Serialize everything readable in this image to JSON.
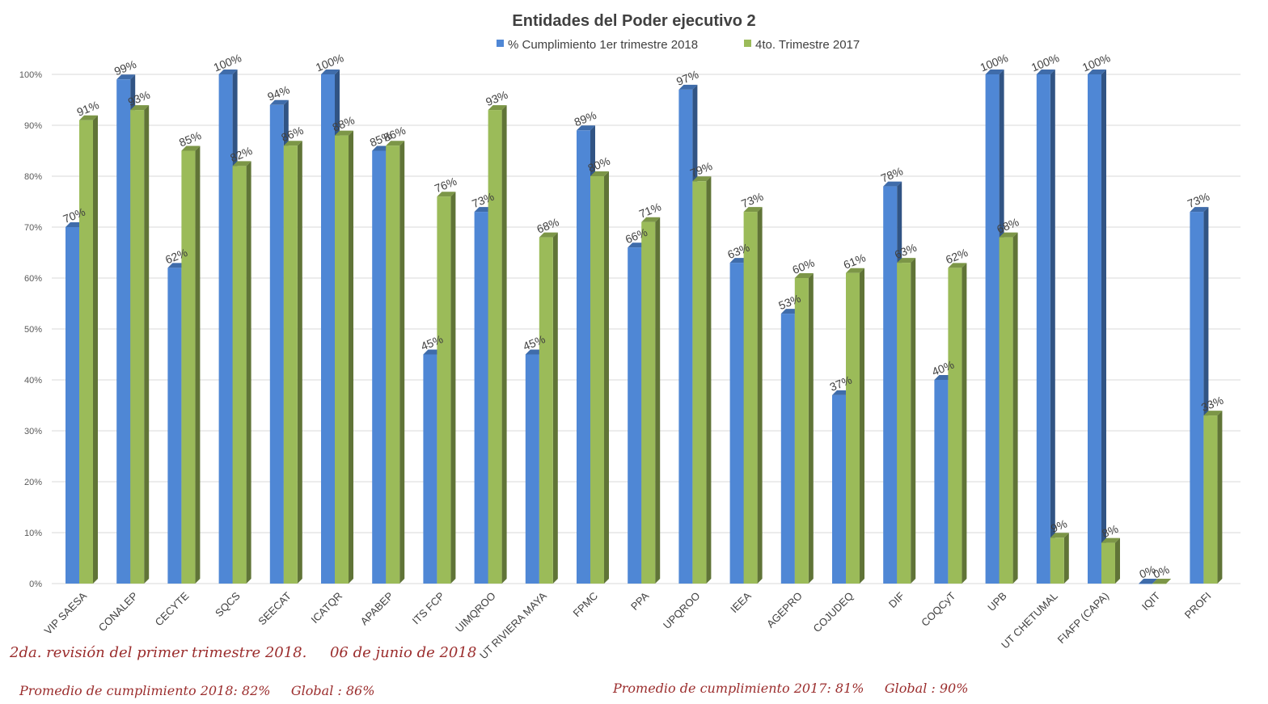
{
  "chart_data": {
    "type": "bar",
    "title": "Entidades del Poder ejecutivo 2",
    "xlabel": "",
    "ylabel": "",
    "ylim": [
      0,
      100
    ],
    "yticks": [
      "0%",
      "10%",
      "20%",
      "30%",
      "40%",
      "50%",
      "60%",
      "70%",
      "80%",
      "90%",
      "100%"
    ],
    "grid": true,
    "legend_position": "top",
    "categories": [
      "VIP SAESA",
      "CONALEP",
      "CECYTE",
      "SQCS",
      "SEECAT",
      "ICATQR",
      "APABEP",
      "ITS FCP",
      "UIMQROO",
      "UT RIVIERA MAYA",
      "FPMC",
      "PPA",
      "UPQROO",
      "IEEA",
      "AGEPRO",
      "COJUDEQ",
      "DIF",
      "COQCyT",
      "UPB",
      "UT CHETUMAL",
      "FIAFP (CAPA)",
      "IQIT",
      "PROFI"
    ],
    "series": [
      {
        "name": "% Cumplimiento 1er trimestre 2018",
        "color": "#4f87d5",
        "values": [
          70,
          99,
          62,
          100,
          94,
          100,
          85,
          45,
          73,
          45,
          89,
          66,
          97,
          63,
          53,
          37,
          78,
          40,
          100,
          100,
          100,
          0,
          73
        ],
        "labels": [
          "70%",
          "99%",
          "62%",
          "100%",
          "94%",
          "100%",
          "85%",
          "45%",
          "73%",
          "45%",
          "89%",
          "66%",
          "97%",
          "63%",
          "53%",
          "37%",
          "78%",
          "40%",
          "100%",
          "100%",
          "100%",
          "0%",
          "73%"
        ]
      },
      {
        "name": "4to. Trimestre 2017",
        "color": "#9bbb59",
        "values": [
          91,
          93,
          85,
          82,
          86,
          88,
          86,
          76,
          93,
          68,
          80,
          71,
          79,
          73,
          60,
          61,
          63,
          62,
          68,
          9,
          8,
          0,
          33
        ],
        "labels": [
          "91%",
          "93%",
          "85%",
          "82%",
          "86%",
          "88%",
          "86%",
          "76%",
          "93%",
          "68%",
          "80%",
          "71%",
          "79%",
          "73%",
          "60%",
          "61%",
          "63%",
          "62%",
          "68%",
          "9%",
          "8%",
          "0%",
          "33%"
        ]
      }
    ]
  },
  "notes": {
    "revision": "2da. revisión del primer trimestre 2018.     06 de junio de 2018",
    "promedio_2018": "Promedio de cumplimiento 2018: 82%     Global : 86%",
    "promedio_2017": "Promedio de cumplimiento 2017: 81%     Global : 90%"
  }
}
